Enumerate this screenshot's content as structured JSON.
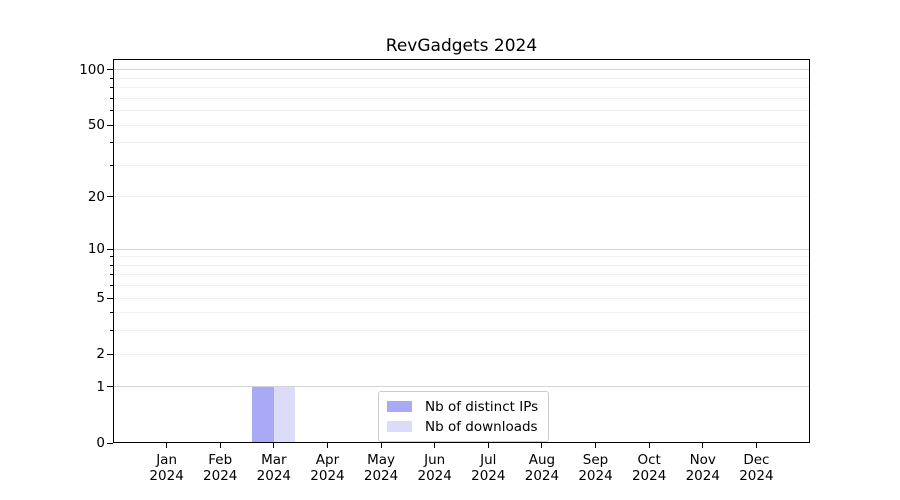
{
  "figure": {
    "title": "RevGadgets 2024",
    "background": "#ffffff"
  },
  "chart_data": {
    "type": "bar",
    "title": "RevGadgets 2024",
    "categories": [
      "Jan 2024",
      "Feb 2024",
      "Mar 2024",
      "Apr 2024",
      "May 2024",
      "Jun 2024",
      "Jul 2024",
      "Aug 2024",
      "Sep 2024",
      "Oct 2024",
      "Nov 2024",
      "Dec 2024"
    ],
    "series": [
      {
        "name": "Nb of distinct IPs",
        "color": "#a9a9f6",
        "values": [
          0,
          0,
          1,
          0,
          0,
          0,
          0,
          0,
          0,
          0,
          0,
          0
        ]
      },
      {
        "name": "Nb of downloads",
        "color": "#dcdcf8",
        "values": [
          0,
          0,
          1,
          0,
          0,
          0,
          0,
          0,
          0,
          0,
          0,
          0
        ]
      }
    ],
    "xlabel": "",
    "ylabel": "",
    "y_axis": {
      "scale": "log1p",
      "ylim": [
        0,
        114.6
      ],
      "ticks": [
        0,
        1,
        2,
        5,
        10,
        20,
        50,
        100
      ],
      "minor_ticks": [
        3,
        4,
        6,
        7,
        8,
        9,
        30,
        40,
        60,
        70,
        80,
        90
      ],
      "major_gridlines": [
        1,
        10,
        100
      ]
    },
    "legend": {
      "position": "lower center",
      "entries": [
        "Nb of distinct IPs",
        "Nb of downloads"
      ]
    },
    "grid": true,
    "bar_width_fraction": 0.4
  },
  "colors": {
    "grid_major": "#d4d4d4",
    "grid_minor": "#f0f0f0",
    "axis": "#000000",
    "legend_border": "#cccccc",
    "text": "#000000"
  }
}
